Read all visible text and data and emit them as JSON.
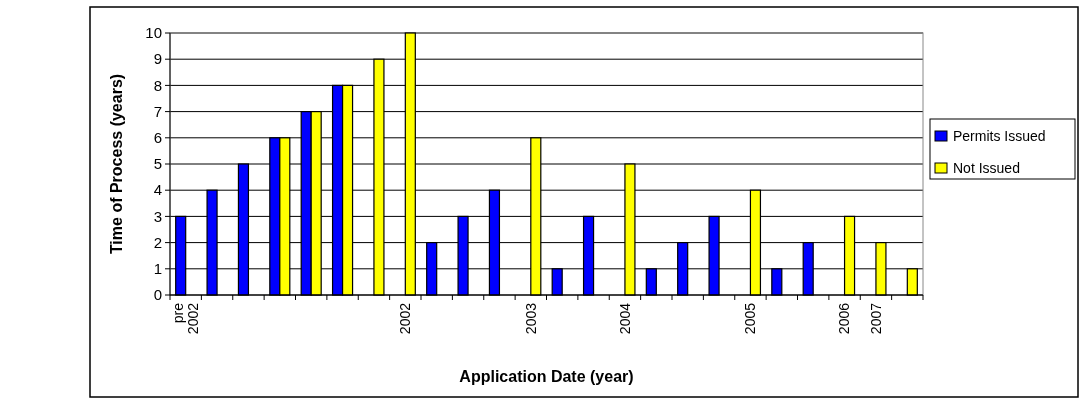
{
  "chart_data": {
    "type": "bar",
    "xlabel": "Application Date (year)",
    "ylabel": "Time of Process (years)",
    "categories": [
      "pre 2002",
      null,
      null,
      null,
      null,
      null,
      null,
      "2002",
      null,
      null,
      null,
      "2003",
      null,
      null,
      "2004",
      null,
      null,
      null,
      "2005",
      null,
      null,
      "2006",
      "2007",
      null
    ],
    "series": [
      {
        "name": "Permits Issued",
        "color": "#0000ff",
        "values": [
          3,
          4,
          5,
          6,
          7,
          8,
          null,
          null,
          2,
          3,
          4,
          null,
          1,
          3,
          null,
          1,
          2,
          3,
          null,
          1,
          2,
          null,
          null,
          null
        ]
      },
      {
        "name": "Not Issued",
        "color": "#ffff00",
        "values": [
          null,
          null,
          null,
          6,
          7,
          8,
          9,
          10,
          null,
          null,
          null,
          6,
          null,
          null,
          5,
          null,
          null,
          null,
          4,
          null,
          null,
          3,
          2,
          1
        ]
      }
    ],
    "ylim": [
      0,
      10
    ],
    "yticks": [
      0,
      1,
      2,
      3,
      4,
      5,
      6,
      7,
      8,
      9,
      10
    ],
    "grid": "y",
    "legend": "right"
  }
}
